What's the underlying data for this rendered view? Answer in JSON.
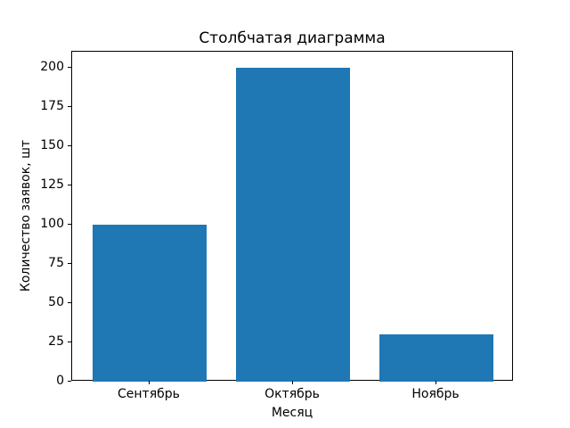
{
  "chart_data": {
    "type": "bar",
    "title": "Столбчатая диаграмма",
    "xlabel": "Месяц",
    "ylabel": "Количество заявок, шт",
    "categories": [
      "Сентябрь",
      "Октябрь",
      "Ноябрь"
    ],
    "values": [
      100,
      200,
      30
    ],
    "yticks": [
      0,
      25,
      50,
      75,
      100,
      125,
      150,
      175,
      200
    ],
    "ylim": [
      0,
      210
    ],
    "xlim": [
      -0.54,
      2.54
    ],
    "bar_width_units": 0.8,
    "bar_color": "#1f77b4",
    "spine_color": "#000000",
    "text_color": "#000000",
    "background": "#ffffff",
    "grid": "off",
    "legend": "none"
  }
}
